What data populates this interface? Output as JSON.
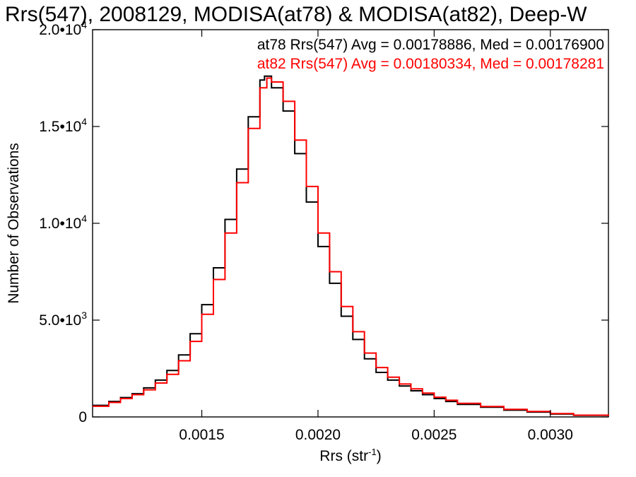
{
  "chart_data": {
    "type": "line",
    "step": true,
    "title": "Rrs(547), 2008129, MODISA(at78) & MODISA(at82), Deep-W",
    "xlabel": "Rrs (str",
    "xlabel_sup": "-1",
    "xlabel_close": ")",
    "ylabel": "Number of Observations",
    "xlim": [
      0.00103,
      0.00325
    ],
    "ylim": [
      0,
      20000
    ],
    "grid": false,
    "legend_position": "top-right",
    "x_ticks": [
      {
        "value": 0.0015,
        "label": "0.0015"
      },
      {
        "value": 0.002,
        "label": "0.0020"
      },
      {
        "value": 0.0025,
        "label": "0.0025"
      },
      {
        "value": 0.003,
        "label": "0.0030"
      }
    ],
    "y_ticks": [
      {
        "value": 0,
        "label": "0",
        "exp": ""
      },
      {
        "value": 5000,
        "label": "5.0•10",
        "exp": "3"
      },
      {
        "value": 10000,
        "label": "1.0•10",
        "exp": "4"
      },
      {
        "value": 15000,
        "label": "1.5•10",
        "exp": "4"
      },
      {
        "value": 20000,
        "label": "2.0•10",
        "exp": "4"
      }
    ],
    "series": [
      {
        "label": "at78 Rrs(547) Avg = 0.00178886, Med = 0.00176900",
        "color": "#000000",
        "x": [
          0.00103,
          0.0011,
          0.00115,
          0.0012,
          0.00125,
          0.0013,
          0.00135,
          0.0014,
          0.00145,
          0.0015,
          0.00155,
          0.0016,
          0.00165,
          0.0017,
          0.00175,
          0.00177,
          0.0018,
          0.00185,
          0.0019,
          0.00195,
          0.002,
          0.00205,
          0.0021,
          0.00215,
          0.0022,
          0.00225,
          0.0023,
          0.00235,
          0.0024,
          0.00245,
          0.0025,
          0.00255,
          0.0026,
          0.0027,
          0.0028,
          0.0029,
          0.003,
          0.0031,
          0.00325
        ],
        "y": [
          600,
          800,
          1000,
          1200,
          1500,
          1900,
          2400,
          3200,
          4300,
          5800,
          7700,
          10200,
          12800,
          15500,
          17400,
          17600,
          17000,
          15800,
          13600,
          11100,
          8800,
          6900,
          5200,
          4000,
          3000,
          2300,
          1900,
          1600,
          1350,
          1150,
          950,
          800,
          650,
          500,
          350,
          250,
          150,
          80,
          40
        ]
      },
      {
        "label": "at82 Rrs(547) Avg = 0.00180334, Med = 0.00178281",
        "color": "#ff0000",
        "x": [
          0.00103,
          0.0011,
          0.00115,
          0.0012,
          0.00125,
          0.0013,
          0.00135,
          0.0014,
          0.00145,
          0.0015,
          0.00155,
          0.0016,
          0.00165,
          0.0017,
          0.00175,
          0.00178,
          0.0018,
          0.00185,
          0.0019,
          0.00195,
          0.002,
          0.00205,
          0.0021,
          0.00215,
          0.0022,
          0.00225,
          0.0023,
          0.00235,
          0.0024,
          0.00245,
          0.0025,
          0.00255,
          0.0026,
          0.0027,
          0.0028,
          0.0029,
          0.003,
          0.0031,
          0.00325
        ],
        "y": [
          550,
          750,
          950,
          1150,
          1400,
          1750,
          2200,
          2900,
          3900,
          5300,
          7100,
          9500,
          12100,
          14900,
          17000,
          17500,
          17300,
          16300,
          14300,
          11900,
          9500,
          7500,
          5700,
          4400,
          3300,
          2550,
          2050,
          1700,
          1450,
          1230,
          1020,
          860,
          700,
          540,
          390,
          280,
          170,
          90,
          50
        ]
      }
    ]
  }
}
